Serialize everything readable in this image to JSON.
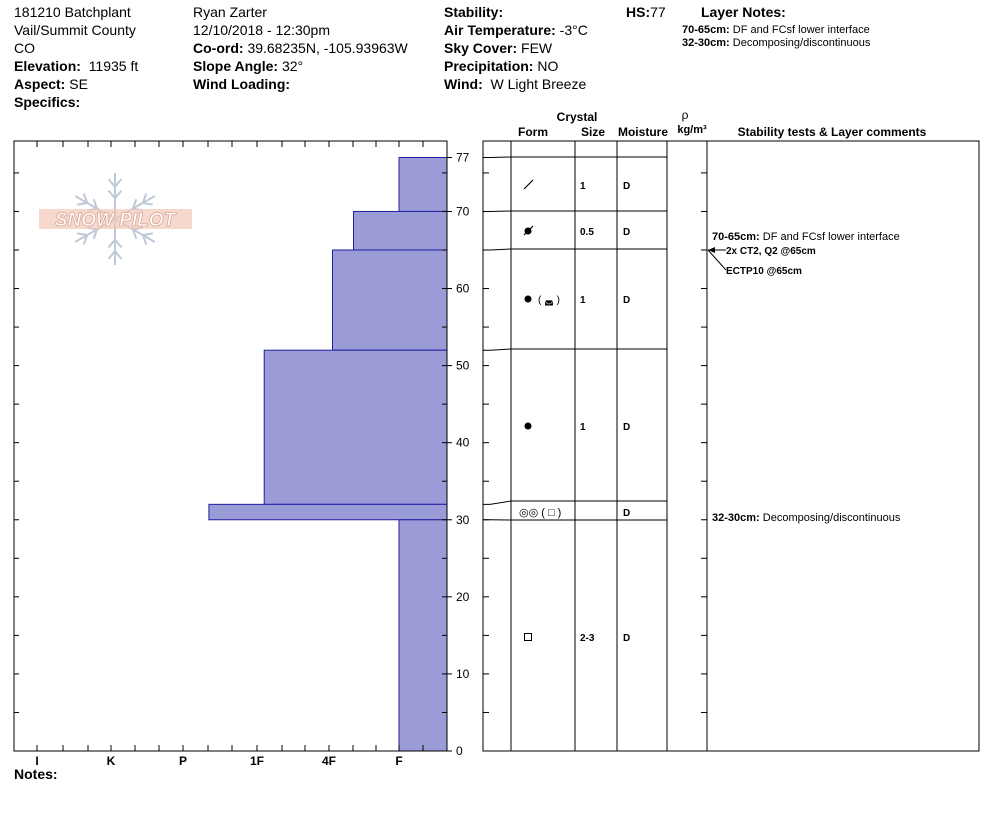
{
  "header": {
    "site": "181210 Batchplant",
    "location": "Vail/Summit County",
    "state": "CO",
    "elevation_label": "Elevation:",
    "elevation": "11935 ft",
    "aspect_label": "Aspect:",
    "aspect": "SE",
    "specifics_label": "Specifics:",
    "observer": "Ryan Zarter",
    "datetime": "12/10/2018 - 12:30pm",
    "coord_label": "Co-ord:",
    "coord": "39.68235N, -105.93963W",
    "slope_label": "Slope Angle:",
    "slope": "32°",
    "wind_loading_label": "Wind Loading:",
    "stability_label": "Stability:",
    "air_temp_label": "Air Temperature:",
    "air_temp": "-3°C",
    "sky_label": "Sky Cover:",
    "sky": "FEW",
    "precip_label": "Precipitation:",
    "precip": "NO",
    "wind_label": "Wind:",
    "wind": "W Light Breeze",
    "hs_label": "HS:",
    "hs": "77",
    "layer_notes_label": "Layer Notes:",
    "layer_notes": [
      {
        "range": "70-65cm:",
        "text": "DF and FCsf lower interface"
      },
      {
        "range": "32-30cm:",
        "text": "Decomposing/discontinuous"
      }
    ]
  },
  "logo": {
    "text": "SNOW PILOT"
  },
  "columns": {
    "crystal": "Crystal",
    "form": "Form",
    "size": "Size",
    "moisture": "Moisture",
    "rho": "ρ",
    "density_unit": "kg/m³",
    "stability": "Stability tests & Layer comments"
  },
  "chart_data": {
    "type": "bar",
    "description_axis": "hand hardness profile",
    "y_axis_label": "",
    "y_range": [
      0,
      77
    ],
    "y_ticks": [
      0,
      10,
      20,
      30,
      40,
      50,
      60,
      70,
      77
    ],
    "hardness_scale": [
      "I",
      "K",
      "P",
      "1F",
      "4F",
      "F"
    ],
    "hardness_scale_values": [
      6,
      5,
      4,
      3,
      2,
      1
    ],
    "layers": [
      {
        "top": 77,
        "bottom": 70,
        "hardness": "F",
        "hardness_value": 1.0
      },
      {
        "top": 70,
        "bottom": 65,
        "hardness": "4F+",
        "hardness_value": 1.65
      },
      {
        "top": 65,
        "bottom": 52,
        "hardness": "4F",
        "hardness_value": 1.95
      },
      {
        "top": 52,
        "bottom": 32,
        "hardness": "1F",
        "hardness_value": 2.9
      },
      {
        "top": 32,
        "bottom": 30,
        "hardness": "P+",
        "hardness_value": 3.65
      },
      {
        "top": 30,
        "bottom": 0,
        "hardness": "F",
        "hardness_value": 1.0
      }
    ],
    "grid": false
  },
  "layer_table": [
    {
      "top": 77,
      "bottom": 70,
      "form": "DF",
      "size": "1",
      "moisture": "D"
    },
    {
      "top": 70,
      "bottom": 65,
      "form": "DF/FC",
      "size": "0.5",
      "moisture": "D"
    },
    {
      "top": 65,
      "bottom": 52,
      "form": "RG (RGxf)",
      "size": "1",
      "moisture": "D"
    },
    {
      "top": 52,
      "bottom": 32,
      "form": "RG",
      "size": "1",
      "moisture": "D"
    },
    {
      "top": 32,
      "bottom": 30,
      "form": "MF (FC)",
      "size": "",
      "moisture": "D"
    },
    {
      "top": 30,
      "bottom": 0,
      "form": "FC",
      "size": "2-3",
      "moisture": "D"
    }
  ],
  "comments": [
    {
      "range": "70-65cm:",
      "text": "DF and FCsf lower interface",
      "depth": 66.5
    },
    {
      "range": "32-30cm:",
      "text": "Decomposing/discontinuous",
      "depth": 30.5
    }
  ],
  "tests": [
    {
      "label": "2x CT2, Q2 @65cm",
      "depth": 65
    },
    {
      "label": "ECTP10 @65cm",
      "depth": 65
    }
  ],
  "colors": {
    "fill": "#9b9bd8",
    "stroke": "#2020a0"
  },
  "notes_label": "Notes:"
}
